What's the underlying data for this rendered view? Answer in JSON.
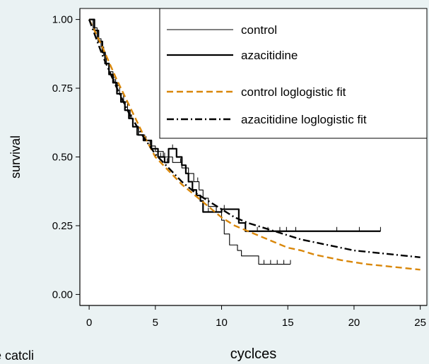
{
  "colors": {
    "page_background": "#eaf2f3",
    "plot_background": "#ffffff",
    "control": "#000000",
    "azacitidine": "#000000",
    "control_fit": "#d9870a",
    "azacitidine_fit": "#000000"
  },
  "chart_data": {
    "type": "line",
    "title": "",
    "xlabel": "cyclces",
    "ylabel": "survival",
    "xlim": [
      -0.7,
      25.5
    ],
    "ylim": [
      -0.04,
      1.04
    ],
    "x_ticks": [
      0,
      5,
      10,
      15,
      20,
      25
    ],
    "x_tick_labels": [
      "0",
      "5",
      "10",
      "15",
      "20",
      "25"
    ],
    "y_ticks": [
      0,
      0.25,
      0.5,
      0.75,
      1.0
    ],
    "y_tick_labels": [
      "0.00",
      "0.25",
      "0.50",
      "0.75",
      "1.00"
    ],
    "grid": false,
    "legend_position": "top-right",
    "bottom_left_text": "ine catcli",
    "series": [
      {
        "name": "control",
        "kind": "step",
        "style": "thin",
        "points": [
          [
            0,
            1.0
          ],
          [
            0.3,
            0.97
          ],
          [
            0.6,
            0.93
          ],
          [
            0.9,
            0.9
          ],
          [
            1.1,
            0.87
          ],
          [
            1.3,
            0.84
          ],
          [
            1.5,
            0.81
          ],
          [
            1.8,
            0.79
          ],
          [
            2.0,
            0.76
          ],
          [
            2.3,
            0.73
          ],
          [
            2.6,
            0.7
          ],
          [
            2.9,
            0.67
          ],
          [
            3.1,
            0.64
          ],
          [
            3.3,
            0.61
          ],
          [
            3.6,
            0.58
          ],
          [
            4.2,
            0.56
          ],
          [
            4.6,
            0.54
          ],
          [
            5.0,
            0.52
          ],
          [
            5.6,
            0.5
          ],
          [
            6.3,
            0.48
          ],
          [
            7.0,
            0.46
          ],
          [
            7.5,
            0.44
          ],
          [
            7.9,
            0.41
          ],
          [
            8.3,
            0.38
          ],
          [
            8.6,
            0.35
          ],
          [
            9.0,
            0.32
          ],
          [
            9.6,
            0.3
          ],
          [
            10.0,
            0.27
          ],
          [
            10.2,
            0.22
          ],
          [
            10.6,
            0.18
          ],
          [
            11.2,
            0.16
          ],
          [
            11.5,
            0.14
          ],
          [
            12.8,
            0.11
          ],
          [
            15.2,
            0.11
          ]
        ],
        "censor_x": [
          5.7,
          6.9,
          8.2,
          13.2,
          13.7,
          14.2,
          14.7,
          15.2
        ]
      },
      {
        "name": "azacitidine",
        "kind": "step",
        "style": "thick",
        "points": [
          [
            0,
            1.0
          ],
          [
            0.4,
            0.96
          ],
          [
            0.7,
            0.92
          ],
          [
            1.0,
            0.88
          ],
          [
            1.2,
            0.84
          ],
          [
            1.5,
            0.8
          ],
          [
            1.8,
            0.77
          ],
          [
            2.1,
            0.73
          ],
          [
            2.4,
            0.7
          ],
          [
            2.7,
            0.67
          ],
          [
            3.0,
            0.64
          ],
          [
            3.3,
            0.61
          ],
          [
            3.7,
            0.58
          ],
          [
            4.1,
            0.56
          ],
          [
            4.7,
            0.53
          ],
          [
            5.2,
            0.5
          ],
          [
            5.7,
            0.48
          ],
          [
            6.0,
            0.53
          ],
          [
            6.6,
            0.5
          ],
          [
            7.0,
            0.47
          ],
          [
            7.3,
            0.44
          ],
          [
            7.5,
            0.41
          ],
          [
            7.8,
            0.38
          ],
          [
            8.1,
            0.36
          ],
          [
            8.4,
            0.34
          ],
          [
            8.6,
            0.3
          ],
          [
            10.0,
            0.3
          ],
          [
            10.0,
            0.31
          ],
          [
            11.3,
            0.31
          ],
          [
            11.3,
            0.26
          ],
          [
            11.8,
            0.23
          ],
          [
            22.0,
            0.23
          ]
        ],
        "censor_x": [
          1.3,
          1.9,
          3.2,
          4.3,
          5.4,
          5.9,
          6.3,
          6.6,
          8.1,
          8.6,
          9.0,
          9.6,
          10.2,
          12.7,
          13.5,
          14.4,
          14.9,
          15.6,
          18.7,
          20.4,
          22.0
        ]
      },
      {
        "name": "control loglogistic fit",
        "kind": "curve",
        "style": "dashed",
        "points": [
          [
            0,
            1.0
          ],
          [
            1,
            0.9
          ],
          [
            2,
            0.79
          ],
          [
            3,
            0.69
          ],
          [
            4,
            0.59
          ],
          [
            5,
            0.5
          ],
          [
            6,
            0.45
          ],
          [
            7,
            0.4
          ],
          [
            8,
            0.36
          ],
          [
            9,
            0.32
          ],
          [
            10,
            0.28
          ],
          [
            11,
            0.25
          ],
          [
            12,
            0.23
          ],
          [
            13,
            0.21
          ],
          [
            14,
            0.19
          ],
          [
            15,
            0.17
          ],
          [
            16,
            0.16
          ],
          [
            17,
            0.145
          ],
          [
            18,
            0.135
          ],
          [
            19,
            0.125
          ],
          [
            20,
            0.117
          ],
          [
            21,
            0.11
          ],
          [
            22,
            0.105
          ],
          [
            23,
            0.1
          ],
          [
            24,
            0.095
          ],
          [
            25,
            0.09
          ]
        ]
      },
      {
        "name": "azacitidine loglogistic fit",
        "kind": "curve",
        "style": "dashdot",
        "points": [
          [
            0,
            1.0
          ],
          [
            1,
            0.87
          ],
          [
            2,
            0.76
          ],
          [
            3,
            0.66
          ],
          [
            4,
            0.58
          ],
          [
            5,
            0.51
          ],
          [
            6,
            0.46
          ],
          [
            7,
            0.41
          ],
          [
            8,
            0.37
          ],
          [
            9,
            0.34
          ],
          [
            10,
            0.31
          ],
          [
            11,
            0.28
          ],
          [
            12,
            0.26
          ],
          [
            13,
            0.245
          ],
          [
            14,
            0.23
          ],
          [
            15,
            0.215
          ],
          [
            16,
            0.2
          ],
          [
            17,
            0.19
          ],
          [
            18,
            0.18
          ],
          [
            19,
            0.17
          ],
          [
            20,
            0.16
          ],
          [
            21,
            0.155
          ],
          [
            22,
            0.15
          ],
          [
            23,
            0.145
          ],
          [
            24,
            0.14
          ],
          [
            25,
            0.135
          ]
        ]
      }
    ]
  }
}
